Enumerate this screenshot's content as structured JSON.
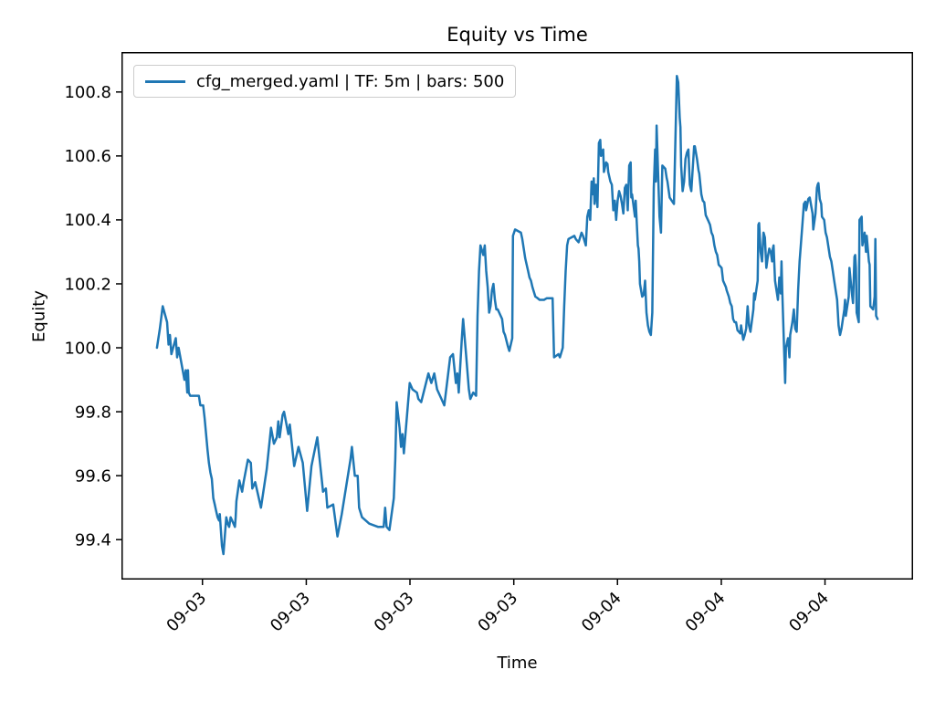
{
  "title": "Equity vs Time",
  "axes": {
    "xlabel": "Time",
    "ylabel": "Equity"
  },
  "legend": {
    "label": "cfg_merged.yaml | TF: 5m | bars: 500",
    "position": "upper left"
  },
  "colors": {
    "line": "#1f77b4",
    "spine": "#000000",
    "text": "#000000",
    "legend_border": "#cccccc",
    "background": "#ffffff"
  },
  "chart_data": {
    "type": "line",
    "title": "Equity vs Time",
    "xlabel": "Time",
    "ylabel": "Equity",
    "series_name": "cfg_merged.yaml | TF: 5m | bars: 500",
    "timeframe": "5m",
    "bars": 500,
    "x_unit": "bar index (5-minute bars)",
    "grid": false,
    "legend_position": "upper left",
    "xlim": [
      -24.6,
      523.6
    ],
    "ylim": [
      99.275,
      100.925
    ],
    "y_ticks": [
      99.4,
      99.6,
      99.8,
      100.0,
      100.2,
      100.4,
      100.6,
      100.8
    ],
    "y_tick_labels": [
      "99.4",
      "99.6",
      "99.8",
      "100.0",
      "100.2",
      "100.4",
      "100.6",
      "100.8"
    ],
    "x_ticks": [
      {
        "bar": 31.5,
        "label": "09-03"
      },
      {
        "bar": 103.4,
        "label": "09-03"
      },
      {
        "bar": 175.2,
        "label": "09-03"
      },
      {
        "bar": 247.1,
        "label": "09-03"
      },
      {
        "bar": 318.9,
        "label": "09-04"
      },
      {
        "bar": 390.8,
        "label": "09-04"
      },
      {
        "bar": 462.6,
        "label": "09-04"
      }
    ],
    "points": [
      [
        0,
        100.0
      ],
      [
        2,
        100.06
      ],
      [
        4,
        100.13
      ],
      [
        7,
        100.08
      ],
      [
        8,
        100.01
      ],
      [
        9,
        100.04
      ],
      [
        10,
        99.98
      ],
      [
        13,
        100.03
      ],
      [
        14,
        99.97
      ],
      [
        15,
        100.0
      ],
      [
        17,
        99.95
      ],
      [
        19,
        99.9
      ],
      [
        20,
        99.93
      ],
      [
        21,
        99.86
      ],
      [
        21.5,
        99.93
      ],
      [
        22,
        99.86
      ],
      [
        23,
        99.85
      ],
      [
        29,
        99.85
      ],
      [
        30,
        99.82
      ],
      [
        32,
        99.82
      ],
      [
        33,
        99.78
      ],
      [
        35,
        99.68
      ],
      [
        36,
        99.64
      ],
      [
        37,
        99.61
      ],
      [
        38,
        99.59
      ],
      [
        39,
        99.53
      ],
      [
        40,
        99.51
      ],
      [
        41,
        99.49
      ],
      [
        42,
        99.47
      ],
      [
        43,
        99.46
      ],
      [
        43.5,
        99.48
      ],
      [
        45,
        99.38
      ],
      [
        46,
        99.355
      ],
      [
        47,
        99.41
      ],
      [
        48,
        99.47
      ],
      [
        49,
        99.45
      ],
      [
        50,
        99.44
      ],
      [
        51,
        99.47
      ],
      [
        54,
        99.44
      ],
      [
        54.5,
        99.47
      ],
      [
        55,
        99.52
      ],
      [
        57,
        99.585
      ],
      [
        59,
        99.55
      ],
      [
        60,
        99.58
      ],
      [
        63,
        99.65
      ],
      [
        65,
        99.64
      ],
      [
        66,
        99.56
      ],
      [
        68,
        99.58
      ],
      [
        72,
        99.5
      ],
      [
        76,
        99.62
      ],
      [
        79,
        99.75
      ],
      [
        81,
        99.7
      ],
      [
        83,
        99.72
      ],
      [
        84,
        99.77
      ],
      [
        85,
        99.72
      ],
      [
        87,
        99.79
      ],
      [
        88,
        99.8
      ],
      [
        91,
        99.73
      ],
      [
        92,
        99.76
      ],
      [
        95,
        99.63
      ],
      [
        98,
        99.69
      ],
      [
        101,
        99.64
      ],
      [
        104,
        99.49
      ],
      [
        107,
        99.63
      ],
      [
        111,
        99.72
      ],
      [
        115,
        99.55
      ],
      [
        117,
        99.56
      ],
      [
        118,
        99.5
      ],
      [
        122,
        99.51
      ],
      [
        125,
        99.41
      ],
      [
        128,
        99.48
      ],
      [
        134,
        99.65
      ],
      [
        135,
        99.69
      ],
      [
        137,
        99.6
      ],
      [
        139,
        99.6
      ],
      [
        140,
        99.5
      ],
      [
        142,
        99.47
      ],
      [
        147,
        99.45
      ],
      [
        153,
        99.44
      ],
      [
        157,
        99.44
      ],
      [
        158,
        99.5
      ],
      [
        159,
        99.44
      ],
      [
        161,
        99.43
      ],
      [
        164,
        99.53
      ],
      [
        165,
        99.65
      ],
      [
        166,
        99.83
      ],
      [
        168,
        99.75
      ],
      [
        169,
        99.69
      ],
      [
        170,
        99.73
      ],
      [
        171,
        99.67
      ],
      [
        175,
        99.89
      ],
      [
        177,
        99.87
      ],
      [
        180,
        99.86
      ],
      [
        181,
        99.84
      ],
      [
        183,
        99.83
      ],
      [
        188,
        99.92
      ],
      [
        190,
        99.89
      ],
      [
        192,
        99.92
      ],
      [
        194,
        99.87
      ],
      [
        197,
        99.84
      ],
      [
        199,
        99.82
      ],
      [
        203,
        99.97
      ],
      [
        205,
        99.98
      ],
      [
        207,
        99.89
      ],
      [
        208,
        99.92
      ],
      [
        209,
        99.86
      ],
      [
        211,
        100.02
      ],
      [
        212,
        100.09
      ],
      [
        214,
        99.98
      ],
      [
        216,
        99.87
      ],
      [
        217,
        99.84
      ],
      [
        219,
        99.86
      ],
      [
        221,
        99.85
      ],
      [
        222,
        100.1
      ],
      [
        223,
        100.24
      ],
      [
        224,
        100.32
      ],
      [
        226,
        100.29
      ],
      [
        227,
        100.32
      ],
      [
        228,
        100.24
      ],
      [
        229,
        100.19
      ],
      [
        230,
        100.11
      ],
      [
        231,
        100.13
      ],
      [
        232,
        100.18
      ],
      [
        233,
        100.2
      ],
      [
        234,
        100.15
      ],
      [
        235,
        100.12
      ],
      [
        236,
        100.12
      ],
      [
        237,
        100.11
      ],
      [
        238,
        100.1
      ],
      [
        239,
        100.09
      ],
      [
        240,
        100.05
      ],
      [
        241,
        100.04
      ],
      [
        243,
        100.005
      ],
      [
        244,
        99.99
      ],
      [
        246,
        100.03
      ],
      [
        246.5,
        100.35
      ],
      [
        248,
        100.37
      ],
      [
        252,
        100.36
      ],
      [
        253,
        100.34
      ],
      [
        254,
        100.31
      ],
      [
        255,
        100.28
      ],
      [
        256,
        100.26
      ],
      [
        257,
        100.24
      ],
      [
        258,
        100.22
      ],
      [
        259,
        100.21
      ],
      [
        260,
        100.19
      ],
      [
        261,
        100.175
      ],
      [
        262,
        100.16
      ],
      [
        263,
        100.157
      ],
      [
        265,
        100.15
      ],
      [
        268,
        100.15
      ],
      [
        270,
        100.155
      ],
      [
        274,
        100.155
      ],
      [
        275,
        99.97
      ],
      [
        278,
        99.98
      ],
      [
        279,
        99.97
      ],
      [
        281,
        100.0
      ],
      [
        282,
        100.13
      ],
      [
        283,
        100.24
      ],
      [
        284,
        100.32
      ],
      [
        285,
        100.34
      ],
      [
        289,
        100.35
      ],
      [
        290,
        100.34
      ],
      [
        292,
        100.33
      ],
      [
        294,
        100.36
      ],
      [
        295,
        100.35
      ],
      [
        297,
        100.32
      ],
      [
        298,
        100.41
      ],
      [
        299,
        100.43
      ],
      [
        300,
        100.4
      ],
      [
        301,
        100.52
      ],
      [
        302,
        100.48
      ],
      [
        302.5,
        100.53
      ],
      [
        303,
        100.45
      ],
      [
        304,
        100.51
      ],
      [
        305,
        100.44
      ],
      [
        306,
        100.64
      ],
      [
        307,
        100.65
      ],
      [
        307.5,
        100.6
      ],
      [
        309,
        100.62
      ],
      [
        309.5,
        100.55
      ],
      [
        311,
        100.58
      ],
      [
        312,
        100.575
      ],
      [
        312.5,
        100.55
      ],
      [
        314,
        100.52
      ],
      [
        315,
        100.51
      ],
      [
        316,
        100.43
      ],
      [
        317,
        100.46
      ],
      [
        318,
        100.4
      ],
      [
        319,
        100.46
      ],
      [
        320,
        100.49
      ],
      [
        321,
        100.475
      ],
      [
        322,
        100.45
      ],
      [
        323,
        100.42
      ],
      [
        324,
        100.5
      ],
      [
        325,
        100.51
      ],
      [
        326,
        100.43
      ],
      [
        327,
        100.57
      ],
      [
        328,
        100.58
      ],
      [
        328.5,
        100.47
      ],
      [
        329,
        100.48
      ],
      [
        331,
        100.41
      ],
      [
        331.5,
        100.46
      ],
      [
        333,
        100.32
      ],
      [
        333.5,
        100.31
      ],
      [
        334,
        100.27
      ],
      [
        334.5,
        100.2
      ],
      [
        336,
        100.16
      ],
      [
        337,
        100.165
      ],
      [
        338,
        100.21
      ],
      [
        339,
        100.11
      ],
      [
        340,
        100.07
      ],
      [
        341,
        100.05
      ],
      [
        342,
        100.04
      ],
      [
        343,
        100.11
      ],
      [
        344,
        100.5
      ],
      [
        345,
        100.62
      ],
      [
        345.5,
        100.52
      ],
      [
        346,
        100.695
      ],
      [
        347,
        100.55
      ],
      [
        348,
        100.41
      ],
      [
        349,
        100.36
      ],
      [
        350,
        100.57
      ],
      [
        352,
        100.56
      ],
      [
        353,
        100.53
      ],
      [
        353.5,
        100.52
      ],
      [
        355,
        100.47
      ],
      [
        358,
        100.45
      ],
      [
        360,
        100.85
      ],
      [
        361,
        100.83
      ],
      [
        362,
        100.72
      ],
      [
        362.5,
        100.69
      ],
      [
        363,
        100.57
      ],
      [
        364,
        100.49
      ],
      [
        365,
        100.52
      ],
      [
        366,
        100.59
      ],
      [
        367,
        100.61
      ],
      [
        368,
        100.62
      ],
      [
        369,
        100.51
      ],
      [
        370,
        100.49
      ],
      [
        372,
        100.63
      ],
      [
        372.5,
        100.63
      ],
      [
        374,
        100.59
      ],
      [
        375,
        100.555
      ],
      [
        375.5,
        100.545
      ],
      [
        377,
        100.48
      ],
      [
        378,
        100.46
      ],
      [
        379,
        100.455
      ],
      [
        380,
        100.415
      ],
      [
        381,
        100.405
      ],
      [
        382,
        100.395
      ],
      [
        383,
        100.385
      ],
      [
        384,
        100.36
      ],
      [
        385,
        100.35
      ],
      [
        386,
        100.32
      ],
      [
        387,
        100.3
      ],
      [
        388,
        100.29
      ],
      [
        389,
        100.26
      ],
      [
        391,
        100.25
      ],
      [
        391.5,
        100.23
      ],
      [
        392,
        100.21
      ],
      [
        394,
        100.19
      ],
      [
        394.5,
        100.18
      ],
      [
        396,
        100.16
      ],
      [
        397,
        100.14
      ],
      [
        398,
        100.13
      ],
      [
        399,
        100.09
      ],
      [
        400,
        100.08
      ],
      [
        401,
        100.08
      ],
      [
        402,
        100.055
      ],
      [
        404,
        100.045
      ],
      [
        404.5,
        100.07
      ],
      [
        406,
        100.025
      ],
      [
        407,
        100.04
      ],
      [
        408,
        100.06
      ],
      [
        409,
        100.13
      ],
      [
        410,
        100.07
      ],
      [
        411,
        100.05
      ],
      [
        413,
        100.12
      ],
      [
        413.5,
        100.17
      ],
      [
        414,
        100.15
      ],
      [
        416,
        100.21
      ],
      [
        416.5,
        100.385
      ],
      [
        417,
        100.39
      ],
      [
        418,
        100.3
      ],
      [
        419,
        100.27
      ],
      [
        420,
        100.36
      ],
      [
        421,
        100.345
      ],
      [
        422,
        100.25
      ],
      [
        423,
        100.285
      ],
      [
        424,
        100.31
      ],
      [
        425,
        100.3
      ],
      [
        426,
        100.27
      ],
      [
        426.5,
        100.31
      ],
      [
        427,
        100.32
      ],
      [
        428,
        100.21
      ],
      [
        429,
        100.18
      ],
      [
        430,
        100.15
      ],
      [
        431,
        100.22
      ],
      [
        432,
        100.17
      ],
      [
        432.5,
        100.27
      ],
      [
        433,
        100.18
      ],
      [
        435,
        99.89
      ],
      [
        435.5,
        100.0
      ],
      [
        437,
        100.03
      ],
      [
        438,
        99.97
      ],
      [
        438.5,
        100.04
      ],
      [
        440,
        100.08
      ],
      [
        441,
        100.12
      ],
      [
        442,
        100.06
      ],
      [
        443,
        100.05
      ],
      [
        444,
        100.18
      ],
      [
        445,
        100.27
      ],
      [
        446,
        100.33
      ],
      [
        447,
        100.39
      ],
      [
        448,
        100.45
      ],
      [
        449,
        100.457
      ],
      [
        449.5,
        100.43
      ],
      [
        450,
        100.44
      ],
      [
        451,
        100.465
      ],
      [
        452,
        100.47
      ],
      [
        454,
        100.42
      ],
      [
        454.5,
        100.37
      ],
      [
        456,
        100.42
      ],
      [
        457,
        100.5
      ],
      [
        457.5,
        100.51
      ],
      [
        458,
        100.515
      ],
      [
        459,
        100.465
      ],
      [
        460,
        100.45
      ],
      [
        460.5,
        100.41
      ],
      [
        462,
        100.4
      ],
      [
        463,
        100.36
      ],
      [
        464,
        100.345
      ],
      [
        465,
        100.315
      ],
      [
        466,
        100.285
      ],
      [
        467,
        100.27
      ],
      [
        468,
        100.24
      ],
      [
        469,
        100.21
      ],
      [
        470,
        100.18
      ],
      [
        471,
        100.15
      ],
      [
        472,
        100.07
      ],
      [
        473,
        100.04
      ],
      [
        474,
        100.06
      ],
      [
        476,
        100.12
      ],
      [
        476.5,
        100.15
      ],
      [
        477,
        100.1
      ],
      [
        479,
        100.16
      ],
      [
        479.5,
        100.25
      ],
      [
        481,
        100.18
      ],
      [
        482,
        100.14
      ],
      [
        483,
        100.285
      ],
      [
        483.5,
        100.29
      ],
      [
        484,
        100.25
      ],
      [
        484.5,
        100.11
      ],
      [
        486,
        100.08
      ],
      [
        486.5,
        100.4
      ],
      [
        488,
        100.41
      ],
      [
        488.5,
        100.32
      ],
      [
        490,
        100.36
      ],
      [
        491,
        100.3
      ],
      [
        491.5,
        100.35
      ],
      [
        493,
        100.27
      ],
      [
        493.5,
        100.26
      ],
      [
        494,
        100.13
      ],
      [
        496,
        100.12
      ],
      [
        497,
        100.16
      ],
      [
        497.5,
        100.34
      ],
      [
        498,
        100.1
      ],
      [
        499,
        100.09
      ]
    ]
  }
}
